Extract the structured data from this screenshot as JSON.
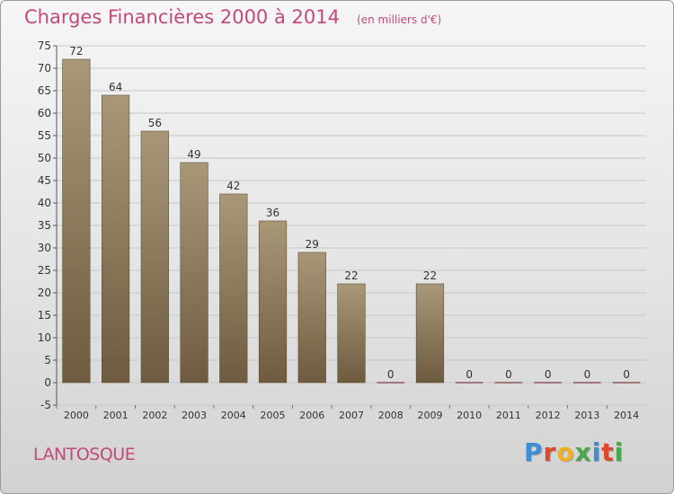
{
  "header": {
    "title": "Charges Financières 2000 à 2014",
    "subtitle": "(en milliers d'€)"
  },
  "footer": {
    "commune": "LANTOSQUE",
    "logo_text": "Proxiti",
    "logo_colors": [
      "#3a8fd6",
      "#e0482c",
      "#f0b020",
      "#4aa84a",
      "#3a8fd6",
      "#e0482c",
      "#4aa84a"
    ]
  },
  "colors": {
    "title": "#c04a7a",
    "bar_top": "#a89878",
    "bar_bottom": "#6e5b40",
    "grid": "#c8c8c8",
    "axis_text": "#333333"
  },
  "chart_data": {
    "type": "bar",
    "categories": [
      "2000",
      "2001",
      "2002",
      "2003",
      "2004",
      "2005",
      "2006",
      "2007",
      "2008",
      "2009",
      "2010",
      "2011",
      "2012",
      "2013",
      "2014"
    ],
    "values": [
      72,
      64,
      56,
      49,
      42,
      36,
      29,
      22,
      0,
      22,
      0,
      0,
      0,
      0,
      0
    ],
    "title": "Charges Financières 2000 à 2014",
    "subtitle": "(en milliers d'€)",
    "ylim": [
      -5,
      75
    ],
    "yticks": [
      -5,
      0,
      5,
      10,
      15,
      20,
      25,
      30,
      35,
      40,
      45,
      50,
      55,
      60,
      65,
      70,
      75
    ],
    "grid": true
  }
}
